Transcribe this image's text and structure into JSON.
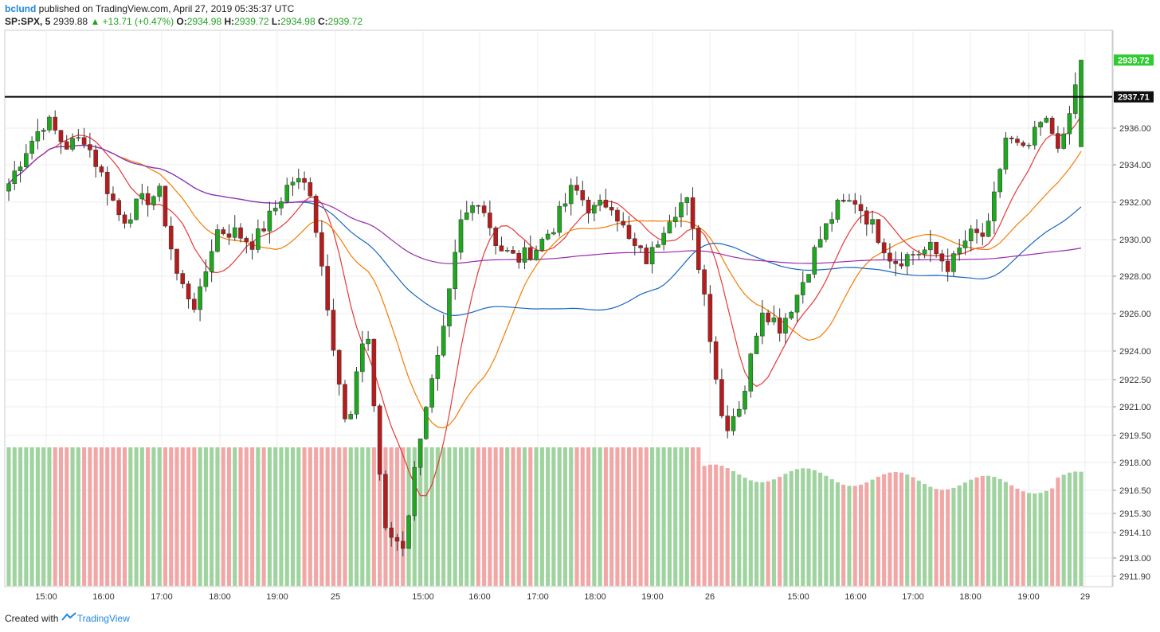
{
  "header": {
    "author": "bclund",
    "published_text": "published on TradingView.com, April 27, 2019 05:35:37 UTC",
    "symbol": "SP:SPX, 5",
    "last": "2939.88",
    "change": "+13.71 (+0.47%)",
    "open_label": "O:",
    "open": "2934.98",
    "high_label": "H:",
    "high": "2939.72",
    "low_label": "L:",
    "low": "2934.98",
    "close_label": "C:",
    "close": "2939.72"
  },
  "footer": {
    "created_with": "Created with",
    "brand": "TradingView"
  },
  "colors": {
    "up": "#1ea81e",
    "down": "#b71c1c",
    "vol_up": "#9fd39f",
    "vol_down": "#f2a7a7",
    "ma_red": "#e53935",
    "ma_orange": "#f57c00",
    "ma_blue": "#1565c0",
    "ma_purple": "#9c27b0",
    "hline": "#000000",
    "grid": "#eeeeee"
  },
  "chart_data": {
    "type": "candlestick",
    "symbol": "SP:SPX",
    "interval": "5",
    "y_ticks": [
      "2911.90",
      "2913.00",
      "2914.10",
      "2915.30",
      "2916.50",
      "2918.00",
      "2919.50",
      "2921.00",
      "2922.50",
      "2924.00",
      "2926.00",
      "2928.00",
      "2930.00",
      "2932.00",
      "2934.00",
      "2936.00"
    ],
    "x_ticks": [
      "15:00",
      "16:00",
      "17:00",
      "18:00",
      "19:00",
      "25",
      "15:00",
      "16:00",
      "17:00",
      "18:00",
      "19:00",
      "26",
      "15:00",
      "16:00",
      "17:00",
      "18:00",
      "19:00",
      "29"
    ],
    "ylim": [
      2911.5,
      2941.5
    ],
    "current_price_label": "2939.72",
    "horizontal_line": {
      "value": 2937.71,
      "label": "2937.71"
    },
    "price_path": [
      2933,
      2935,
      2936.5,
      2935,
      2935.5,
      2933.3,
      2931,
      2932,
      2932.5,
      2927.8,
      2926.3,
      2930.5,
      2930.4,
      2929.8,
      2931.4,
      2933.2,
      2932.8,
      2926.2,
      2919.3,
      2925.9,
      2914.1,
      2913.6,
      2920.5,
      2924.2,
      2930.8,
      2932.3,
      2929.6,
      2928.9,
      2929.5,
      2930.8,
      2932.8,
      2931.5,
      2932.1,
      2929.8,
      2928.8,
      2931.2,
      2932.2,
      2926.9,
      2919.8,
      2921.4,
      2926.4,
      2925.3,
      2927.2,
      2929.8,
      2931.7,
      2932.1,
      2930.6,
      2928.8,
      2929.2,
      2929.5,
      2928.5,
      2930.2,
      2930.2,
      2935.5,
      2934.6,
      2936.5,
      2934.9,
      2939.72
    ],
    "volume_note": "bars behind price; flat maximum level through session 25, varying on session 26"
  }
}
